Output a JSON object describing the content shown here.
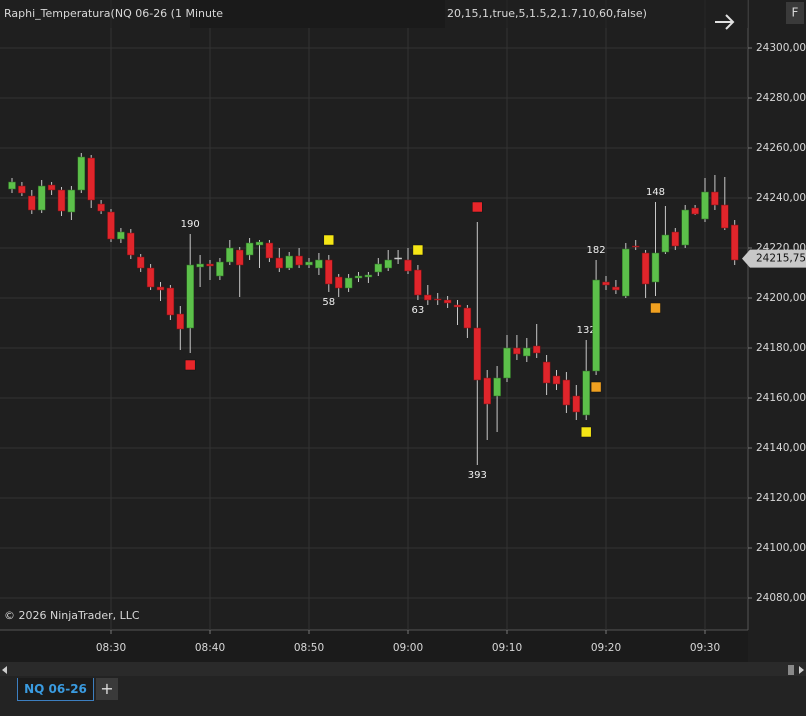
{
  "ui": {
    "indicator_title": "Raphi_Temperatura(NQ 06-26 (1 Minute",
    "params": "20,15,1,true,5,1.5,2,1.7,10,60,false)",
    "button": "F",
    "copyright": "© 2026 NinjaTrader, LLC",
    "tab": "NQ 06-26",
    "add_tab": "+"
  },
  "chart_data": {
    "type": "candlestick",
    "categories": [
      null,
      null,
      null,
      null,
      null,
      null,
      null,
      null,
      null,
      null,
      "08:30",
      null,
      null,
      null,
      null,
      null,
      null,
      null,
      null,
      null,
      "08:40",
      null,
      null,
      null,
      null,
      null,
      null,
      null,
      null,
      null,
      "08:50",
      null,
      null,
      null,
      null,
      null,
      null,
      null,
      null,
      null,
      "09:00",
      null,
      null,
      null,
      null,
      null,
      null,
      null,
      null,
      null,
      "09:10",
      null,
      null,
      null,
      null,
      null,
      null,
      null,
      null,
      null,
      "09:20",
      null,
      null,
      null,
      null,
      null,
      null,
      null,
      null,
      null,
      "09:30",
      null,
      null,
      null
    ],
    "open": [
      24243.6,
      24244.8,
      24240.8,
      24235.2,
      24245.2,
      24243.2,
      24234.4,
      24243.2,
      24256.0,
      24237.6,
      24234.4,
      24223.6,
      24226.0,
      24216.4,
      24212.0,
      24204.4,
      24204.0,
      24193.6,
      24188.0,
      24212.4,
      24213.6,
      24208.8,
      24214.4,
      24219.2,
      24217.2,
      24221.2,
      24222.0,
      24216.0,
      24212.0,
      24216.8,
      24213.2,
      24212.0,
      24215.2,
      24208.4,
      24204.0,
      24208.0,
      24208.4,
      24210.4,
      24212.0,
      24216.0,
      24215.2,
      24211.2,
      24201.2,
      24199.6,
      24199.2,
      24197.2,
      24196.0,
      24188.0,
      24168.0,
      24160.8,
      24168.0,
      24180.0,
      24176.8,
      24180.8,
      24174.4,
      24168.8,
      24167.2,
      24160.8,
      24153.2,
      24170.8,
      24206.4,
      24204.4,
      24200.8,
      24220.8,
      24218.0,
      24206.4,
      24218.4,
      24226.4,
      24221.2,
      24236.0,
      24231.6,
      24242.4,
      24237.2,
      24229.2
    ],
    "high": [
      24248.0,
      24246.4,
      24243.2,
      24247.2,
      24246.4,
      24244.4,
      24244.8,
      24258.0,
      24257.2,
      24239.2,
      24235.6,
      24228.0,
      24227.6,
      24217.6,
      24213.6,
      24206.4,
      24205.2,
      24196.8,
      24225.6,
      24217.2,
      24215.2,
      24216.0,
      24223.2,
      24220.4,
      24224.0,
      24223.2,
      24223.2,
      24220.0,
      24218.4,
      24220.0,
      24216.0,
      24218.0,
      24217.2,
      24209.6,
      24209.6,
      24210.4,
      24210.4,
      24216.0,
      24219.2,
      24219.2,
      24220.0,
      24213.2,
      24205.2,
      24202.0,
      24200.8,
      24199.2,
      24197.2,
      24230.4,
      24171.2,
      24172.8,
      24185.2,
      24185.2,
      24184.0,
      24189.6,
      24177.2,
      24171.2,
      24170.4,
      24165.2,
      24183.2,
      24215.2,
      24208.8,
      24207.2,
      24222.0,
      24223.2,
      24219.2,
      24238.4,
      24236.8,
      24228.0,
      24237.2,
      24237.2,
      24248.0,
      24249.2,
      24248.4,
      24231.2
    ],
    "low": [
      24242.0,
      24240.8,
      24233.6,
      24234.0,
      24241.2,
      24232.8,
      24231.2,
      24242.0,
      24236.0,
      24233.6,
      24222.4,
      24222.0,
      24215.6,
      24210.4,
      24203.2,
      24198.8,
      24191.2,
      24179.2,
      24178.0,
      24204.4,
      24207.2,
      24207.2,
      24213.2,
      24200.4,
      24215.2,
      24212.0,
      24214.4,
      24210.4,
      24211.2,
      24212.0,
      24212.0,
      24209.2,
      24202.4,
      24200.4,
      24202.4,
      24206.4,
      24206.0,
      24208.8,
      24210.8,
      24213.6,
      24209.6,
      24199.2,
      24197.2,
      24197.2,
      24196.0,
      24189.2,
      24184.0,
      24133.2,
      24143.2,
      24146.4,
      24166.4,
      24175.2,
      24174.4,
      24176.0,
      24161.2,
      24163.2,
      24154.0,
      24151.2,
      24151.2,
      24169.2,
      24203.2,
      24201.6,
      24200.0,
      24219.2,
      24200.0,
      24200.8,
      24217.6,
      24219.2,
      24220.0,
      24233.2,
      24230.4,
      24235.2,
      24227.2,
      24213.2
    ],
    "close": [
      24246.4,
      24242.0,
      24235.2,
      24244.8,
      24243.2,
      24234.8,
      24243.2,
      24256.4,
      24239.2,
      24234.8,
      24223.6,
      24226.4,
      24217.2,
      24212.0,
      24204.4,
      24203.2,
      24193.2,
      24187.6,
      24213.2,
      24213.6,
      24212.8,
      24214.4,
      24220.0,
      24213.2,
      24222.0,
      24222.4,
      24216.0,
      24212.0,
      24216.8,
      24213.2,
      24214.4,
      24215.2,
      24205.6,
      24204.0,
      24208.0,
      24208.8,
      24209.2,
      24213.6,
      24215.2,
      24216.0,
      24210.8,
      24201.2,
      24199.2,
      24199.2,
      24198.0,
      24196.4,
      24188.0,
      24167.2,
      24157.6,
      24168.0,
      24180.0,
      24177.6,
      24180.0,
      24178.0,
      24166.0,
      24165.6,
      24157.2,
      24154.4,
      24170.8,
      24207.2,
      24205.2,
      24203.2,
      24219.6,
      24220.4,
      24205.6,
      24218.0,
      24225.2,
      24220.8,
      24235.2,
      24233.6,
      24242.4,
      24237.2,
      24228.0,
      24215.2
    ],
    "candle_labels": [
      null,
      null,
      null,
      null,
      null,
      null,
      null,
      null,
      null,
      null,
      null,
      null,
      null,
      null,
      null,
      null,
      null,
      null,
      190,
      null,
      null,
      null,
      null,
      null,
      null,
      null,
      null,
      null,
      null,
      null,
      null,
      null,
      58,
      null,
      null,
      null,
      null,
      null,
      null,
      null,
      null,
      63,
      null,
      null,
      null,
      null,
      null,
      393,
      null,
      null,
      null,
      null,
      null,
      null,
      null,
      null,
      null,
      null,
      132,
      182,
      null,
      null,
      null,
      null,
      null,
      148,
      null,
      null,
      null,
      null,
      null,
      null,
      null,
      null
    ],
    "signals": [
      null,
      null,
      null,
      null,
      null,
      null,
      null,
      null,
      null,
      null,
      null,
      null,
      null,
      null,
      null,
      null,
      null,
      null,
      "#e8262a",
      null,
      null,
      null,
      null,
      null,
      null,
      null,
      null,
      null,
      null,
      null,
      null,
      null,
      "#f5e616",
      null,
      null,
      null,
      null,
      null,
      null,
      null,
      null,
      "#f5e616",
      null,
      null,
      null,
      null,
      null,
      "#e8262a",
      null,
      null,
      null,
      null,
      null,
      null,
      null,
      null,
      null,
      null,
      "#f5e616",
      "#f0a020",
      null,
      null,
      null,
      null,
      null,
      "#f0a020",
      null,
      null,
      null,
      null,
      null,
      null,
      null,
      null
    ],
    "up_color": "#5cc04a",
    "down_color": "#e0252b",
    "wick_color": "#c8c8c8",
    "ylim": [
      24067.2,
      24319.2
    ],
    "yticks": [
      {
        "value": 24080,
        "label": "24080,00"
      },
      {
        "value": 24100,
        "label": "24100,00"
      },
      {
        "value": 24120,
        "label": "24120,00"
      },
      {
        "value": 24140,
        "label": "24140,00"
      },
      {
        "value": 24160,
        "label": "24160,00"
      },
      {
        "value": 24180,
        "label": "24180,00"
      },
      {
        "value": 24200,
        "label": "24200,00"
      },
      {
        "value": 24220,
        "label": "24220,00"
      },
      {
        "value": 24240,
        "label": "24240,00"
      },
      {
        "value": 24260,
        "label": "24260,00"
      },
      {
        "value": 24280,
        "label": "24280,00"
      },
      {
        "value": 24300,
        "label": "24300,00"
      }
    ],
    "last_price": {
      "value": 24215.75,
      "label": "24215,75"
    },
    "grid": true
  }
}
